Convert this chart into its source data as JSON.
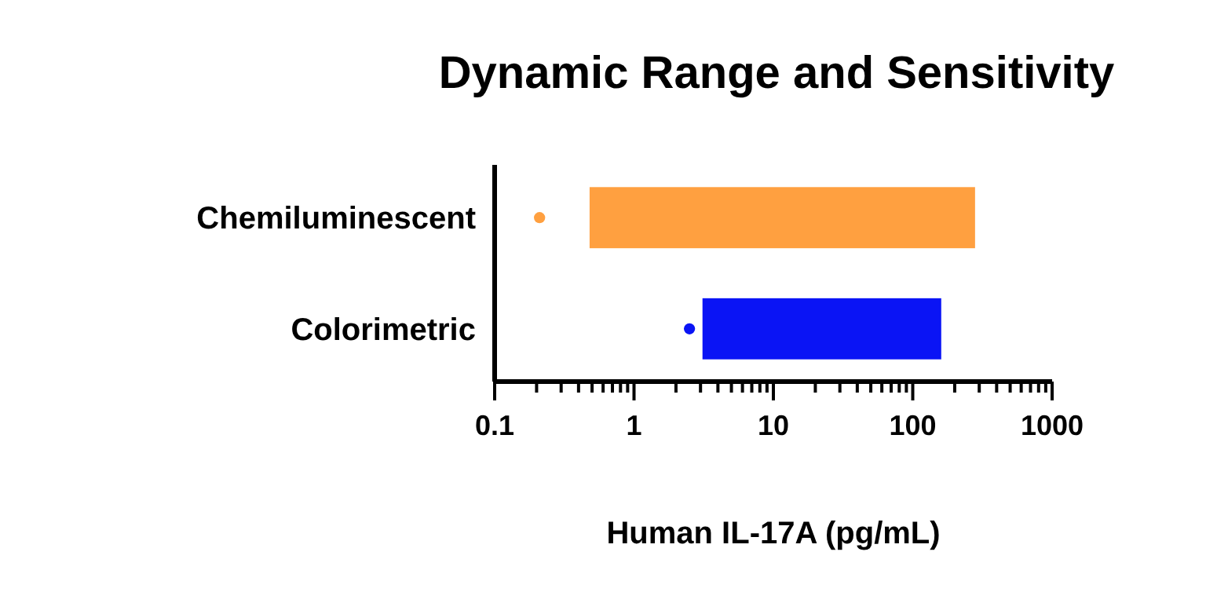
{
  "chart_data": {
    "type": "bar",
    "orientation": "horizontal",
    "title": "Dynamic Range and Sensitivity",
    "xlabel": "Human IL-17A (pg/mL)",
    "categories": [
      "Chemiluminescent",
      "Colorimetric"
    ],
    "log": "x",
    "xlim": [
      0.1,
      1000
    ],
    "xticks": [
      0.1,
      {
        "value": 0.2,
        "label": null
      },
      {
        "value": 0.3,
        "label": null
      },
      {
        "value": 0.4,
        "label": null
      },
      {
        "value": 0.5,
        "label": null
      },
      {
        "value": 0.6,
        "label": null
      },
      {
        "value": 0.7,
        "label": null
      },
      {
        "value": 0.8,
        "label": null
      },
      {
        "value": 0.9,
        "label": null
      },
      1,
      {
        "value": 2,
        "label": null
      },
      {
        "value": 3,
        "label": null
      },
      {
        "value": 4,
        "label": null
      },
      {
        "value": 5,
        "label": null
      },
      {
        "value": 6,
        "label": null
      },
      {
        "value": 7,
        "label": null
      },
      {
        "value": 8,
        "label": null
      },
      {
        "value": 9,
        "label": null
      },
      10,
      {
        "value": 20,
        "label": null
      },
      {
        "value": 30,
        "label": null
      },
      {
        "value": 40,
        "label": null
      },
      {
        "value": 50,
        "label": null
      },
      {
        "value": 60,
        "label": null
      },
      {
        "value": 70,
        "label": null
      },
      {
        "value": 80,
        "label": null
      },
      {
        "value": 90,
        "label": null
      },
      100,
      {
        "value": 200,
        "label": null
      },
      {
        "value": 300,
        "label": null
      },
      {
        "value": 400,
        "label": null
      },
      {
        "value": 500,
        "label": null
      },
      {
        "value": 600,
        "label": null
      },
      {
        "value": 700,
        "label": null
      },
      {
        "value": 800,
        "label": null
      },
      {
        "value": 900,
        "label": null
      },
      1000
    ],
    "series": [
      {
        "type": "bar",
        "values": [
          279.5,
          157
        ],
        "base": [
          0.48,
          3.1
        ],
        "colors": [
          "#ffa040",
          "#0a14f5"
        ]
      },
      {
        "type": "scatter",
        "x": [
          "Chemiluminescent",
          "Colorimetric"
        ],
        "values": [
          0.21,
          2.5
        ],
        "colors": [
          "#ffa040",
          "#0a14f5"
        ],
        "marker": "circle"
      }
    ]
  }
}
